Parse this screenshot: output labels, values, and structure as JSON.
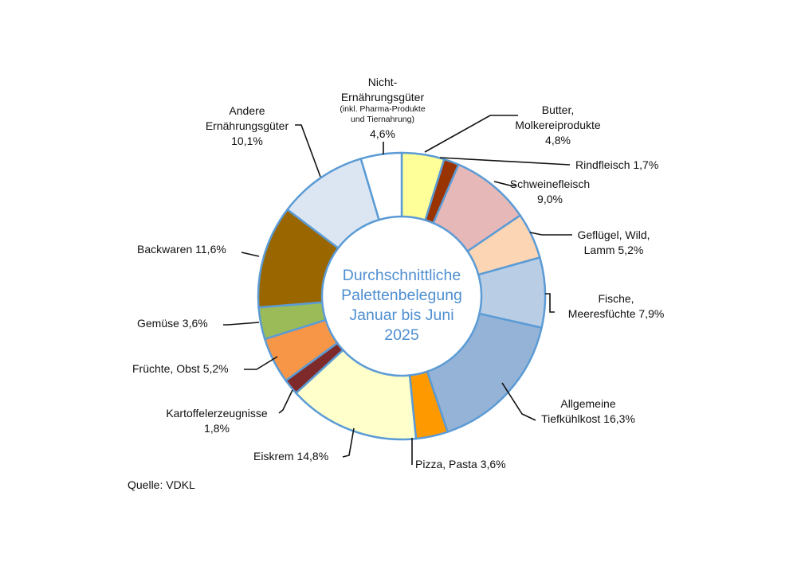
{
  "chart_data": {
    "type": "donut",
    "center_text": [
      "Durchschnittliche",
      "Palettenbelegung",
      "Januar bis Juni",
      "2025"
    ],
    "slices": [
      {
        "label": [
          "Butter,",
          "Molkereiprodukte",
          "4,8%"
        ],
        "value": 4.8,
        "color": "#ffff99"
      },
      {
        "label": [
          "Rindfleisch 1,7%"
        ],
        "value": 1.7,
        "color": "#993300"
      },
      {
        "label": [
          "Schweinefleisch",
          "9,0%"
        ],
        "value": 9.0,
        "color": "#e6b9b8"
      },
      {
        "label": [
          "Geflügel, Wild,",
          "Lamm 5,2%"
        ],
        "value": 5.2,
        "color": "#fcd5b5"
      },
      {
        "label": [
          "Fische,",
          "Meeresfüchte 7,9%"
        ],
        "value": 7.9,
        "color": "#b9cde5"
      },
      {
        "label": [
          "Allgemeine",
          "Tiefkühlkost 16,3%"
        ],
        "value": 16.3,
        "color": "#95b3d7"
      },
      {
        "label": [
          "Pizza, Pasta 3,6%"
        ],
        "value": 3.6,
        "color": "#ff9900"
      },
      {
        "label": [
          "Eiskrem 14,8%"
        ],
        "value": 14.8,
        "color": "#ffffcc"
      },
      {
        "label": [
          "Kartoffelerzeugnisse",
          "1,8%"
        ],
        "value": 1.8,
        "color": "#7f2a2a"
      },
      {
        "label": [
          "Früchte, Obst 5,2%"
        ],
        "value": 5.2,
        "color": "#f79646"
      },
      {
        "label": [
          "Gemüse 3,6%"
        ],
        "value": 3.6,
        "color": "#9bbb59"
      },
      {
        "label": [
          "Backwaren 11,6%"
        ],
        "value": 11.6,
        "color": "#996600"
      },
      {
        "label": [
          "Andere",
          "Ernährungsgüter",
          "10,1%"
        ],
        "value": 10.1,
        "color": "#dce6f2"
      },
      {
        "label": [
          "Nicht-",
          "Ernährungsgüter"
        ],
        "sublabel": [
          "(inkl. Pharma-Produkte",
          "und Tiernahrung)"
        ],
        "value_label": "4,6%",
        "value": 4.6,
        "color": "#ffffff"
      }
    ],
    "ring_color": "#5b9bd5"
  },
  "source": "Quelle: VDKL"
}
